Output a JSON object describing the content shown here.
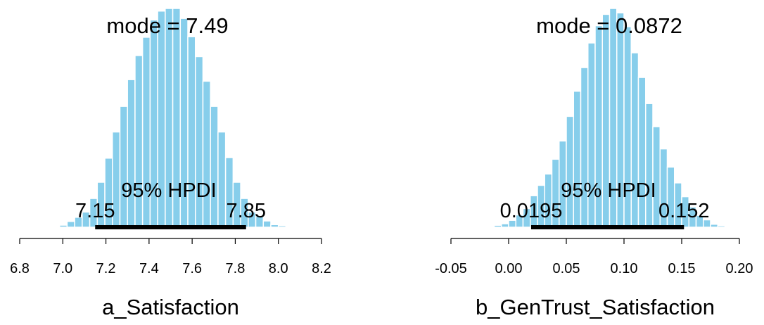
{
  "chart_data": [
    {
      "type": "bar",
      "xlabel": "a_Satisfaction",
      "xlim": [
        6.8,
        8.2
      ],
      "xticks": [
        "6.8",
        "7.0",
        "7.2",
        "7.4",
        "7.6",
        "7.8",
        "8.0",
        "8.2"
      ],
      "bar_color": "#87CEEB",
      "bar_edge_color": "#ffffff",
      "bin_width": 0.035,
      "bin_starts": [
        6.985,
        7.02,
        7.055,
        7.09,
        7.125,
        7.16,
        7.195,
        7.23,
        7.265,
        7.3,
        7.335,
        7.37,
        7.405,
        7.44,
        7.475,
        7.51,
        7.545,
        7.58,
        7.615,
        7.65,
        7.685,
        7.72,
        7.755,
        7.79,
        7.825,
        7.86,
        7.895,
        7.93,
        7.965,
        8.0,
        8.035
      ],
      "values": [
        0.04,
        0.11,
        0.19,
        0.29,
        0.55,
        0.86,
        1.32,
        1.82,
        2.31,
        2.82,
        3.28,
        3.63,
        3.96,
        4.13,
        4.18,
        4.18,
        3.99,
        3.64,
        3.26,
        2.79,
        2.31,
        1.82,
        1.33,
        0.86,
        0.55,
        0.29,
        0.21,
        0.12,
        0.05,
        0.03,
        0.02
      ],
      "mode_label": "mode = 7.49",
      "hpdi_label": "95% HPDI",
      "hpdi_low": 7.15,
      "hpdi_high": 7.85,
      "hpdi_low_label": "7.15",
      "hpdi_high_label": "7.85"
    },
    {
      "type": "bar",
      "xlabel": "b_GenTrust_Satisfaction",
      "xlim": [
        -0.05,
        0.2
      ],
      "xticks": [
        "-0.05",
        "0.00",
        "0.05",
        "0.10",
        "0.15",
        "0.20"
      ],
      "bar_color": "#87CEEB",
      "bar_edge_color": "#ffffff",
      "bin_width": 0.00625,
      "bin_starts": [
        -0.0125,
        -0.00625,
        0.0,
        0.00625,
        0.0125,
        0.01875,
        0.025,
        0.03125,
        0.0375,
        0.04375,
        0.05,
        0.05625,
        0.0625,
        0.06875,
        0.075,
        0.08125,
        0.0875,
        0.09375,
        0.1,
        0.10625,
        0.1125,
        0.11875,
        0.125,
        0.13125,
        0.1375,
        0.14375,
        0.15,
        0.15625,
        0.1625,
        0.16875,
        0.175,
        0.18125
      ],
      "values": [
        0.04,
        0.07,
        0.14,
        0.25,
        0.38,
        0.64,
        0.85,
        1.08,
        1.38,
        1.75,
        2.25,
        2.76,
        3.24,
        3.74,
        4.09,
        4.32,
        4.44,
        4.35,
        4.07,
        3.54,
        3.04,
        2.51,
        2.04,
        1.59,
        1.22,
        0.9,
        0.62,
        0.41,
        0.24,
        0.15,
        0.06,
        0.03
      ],
      "mode_label": "mode = 0.0872",
      "hpdi_label": "95% HPDI",
      "hpdi_low": 0.0195,
      "hpdi_high": 0.152,
      "hpdi_low_label": "0.0195",
      "hpdi_high_label": "0.152"
    }
  ]
}
